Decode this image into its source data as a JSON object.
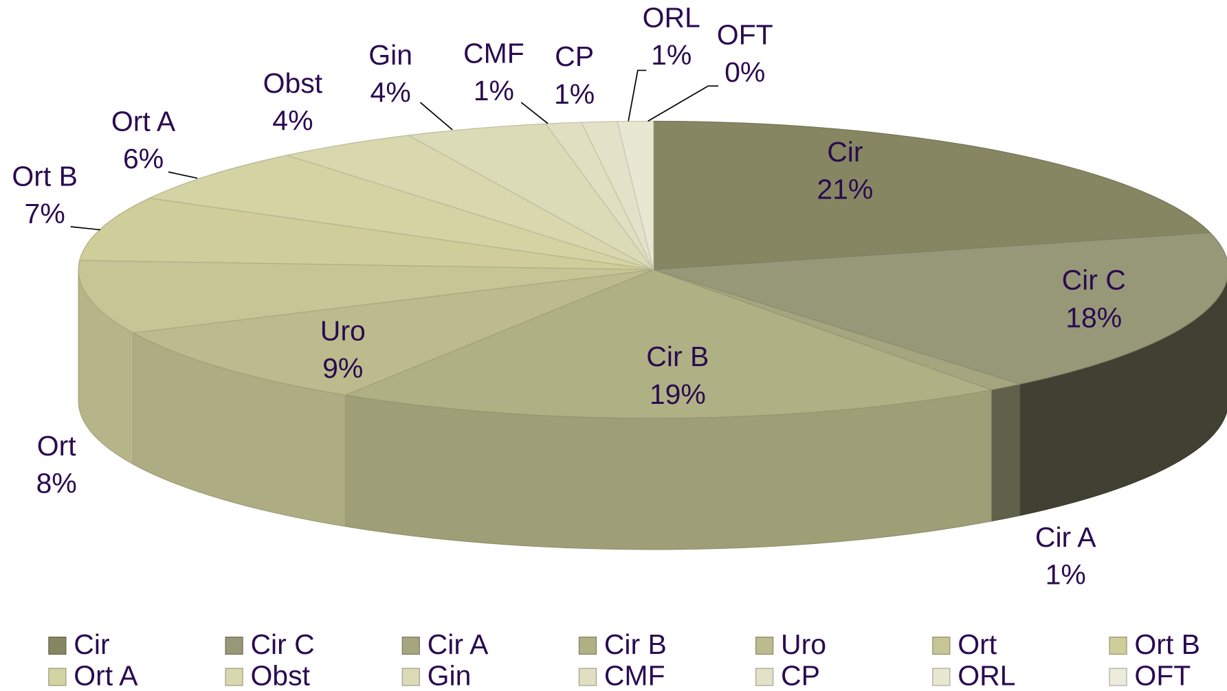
{
  "chart_data": {
    "type": "pie3d",
    "categories": [
      "Cir",
      "Cir C",
      "Cir A",
      "Cir B",
      "Uro",
      "Ort",
      "Ort B",
      "Ort A",
      "Obst",
      "Gin",
      "CMF",
      "CP",
      "ORL",
      "OFT"
    ],
    "values": [
      21,
      18,
      1,
      19,
      9,
      8,
      7,
      6,
      4,
      4,
      1,
      1,
      1,
      0
    ],
    "value_labels": [
      "21%",
      "18%",
      "1%",
      "19%",
      "9%",
      "8%",
      "7%",
      "6%",
      "4%",
      "4%",
      "1%",
      "1%",
      "1%",
      "0%"
    ],
    "colors": [
      "#868762",
      "#979878",
      "#a5a67f",
      "#afb084",
      "#bcbb8d",
      "#c6c595",
      "#cfcd9a",
      "#d4d3a4",
      "#d8d7ae",
      "#dcdbb8",
      "#e0dfc2",
      "#e3e2c8",
      "#e8e7d2",
      "#ecebdc"
    ],
    "legend": "bottom"
  }
}
